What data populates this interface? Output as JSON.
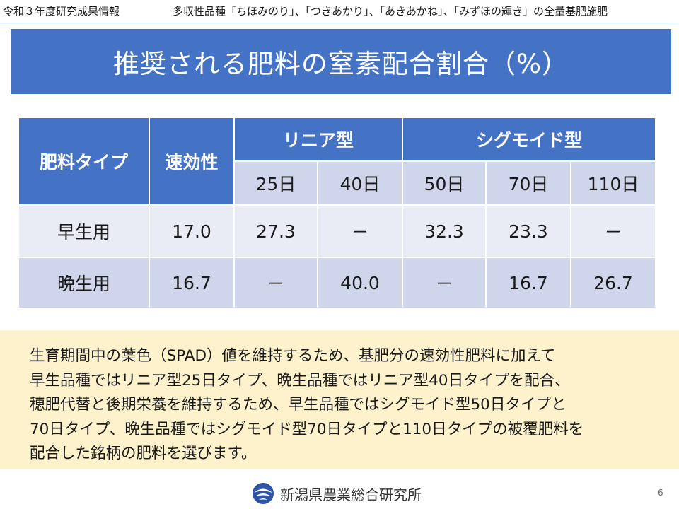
{
  "header": {
    "left_text": "令和３年度研究成果情報",
    "right_text": "多収性品種「ちほみのり」、「つきあかり」、「あきあかね」、「みずほの輝き」の全量基肥施肥"
  },
  "title": "推奨される肥料の窒素配合割合（%）",
  "table": {
    "col_fertilizer_type": "肥料タイプ",
    "col_quick": "速効性",
    "group_linear": "リニア型",
    "group_sigmoid": "シグモイド型",
    "subcols": [
      "25日",
      "40日",
      "50日",
      "70日",
      "110日"
    ],
    "rows": [
      {
        "label": "早生用",
        "values": [
          "17.0",
          "27.3",
          "－",
          "32.3",
          "23.3",
          "－"
        ]
      },
      {
        "label": "晩生用",
        "values": [
          "16.7",
          "－",
          "40.0",
          "－",
          "16.7",
          "26.7"
        ]
      }
    ]
  },
  "note": {
    "lines": [
      "生育期間中の葉色（SPAD）値を維持するため、基肥分の速効性肥料に加えて",
      "早生品種ではリニア型25日タイプ、晩生品種ではリニア型40日タイプを配合、",
      "穂肥代替と後期栄養を維持するため、早生品種ではシグモイド型50日タイプと",
      "70日タイプ、晩生品種ではシグモイド型70日タイプと110日タイプの被覆肥料を",
      "配合した銘柄の肥料を選びます。"
    ]
  },
  "footer": {
    "org_name": "新潟県農業総合研究所",
    "page_number": "6",
    "logo_icon": "niigata-prefecture-emblem-icon"
  },
  "colors": {
    "header_blue": "#4472c4",
    "row_light": "#e9ebf5",
    "row_mid": "#cfd5ea",
    "note_bg": "#fef2cc"
  }
}
